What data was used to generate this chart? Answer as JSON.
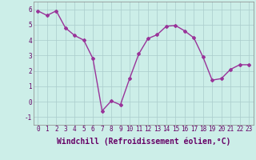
{
  "x": [
    0,
    1,
    2,
    3,
    4,
    5,
    6,
    7,
    8,
    9,
    10,
    11,
    12,
    13,
    14,
    15,
    16,
    17,
    18,
    19,
    20,
    21,
    22,
    23
  ],
  "y": [
    5.9,
    5.6,
    5.9,
    4.8,
    4.3,
    4.0,
    2.8,
    -0.6,
    0.05,
    -0.2,
    1.5,
    3.1,
    4.1,
    4.35,
    4.9,
    4.95,
    4.6,
    4.15,
    2.9,
    1.4,
    1.5,
    2.1,
    2.4,
    2.4
  ],
  "line_color": "#993399",
  "marker": "D",
  "marker_size": 2,
  "bg_color": "#cceee8",
  "grid_color": "#aacccc",
  "xlabel": "Windchill (Refroidissement éolien,°C)",
  "ylim": [
    -1.5,
    6.5
  ],
  "xlim": [
    -0.5,
    23.5
  ],
  "yticks": [
    -1,
    0,
    1,
    2,
    3,
    4,
    5,
    6
  ],
  "xticks": [
    0,
    1,
    2,
    3,
    4,
    5,
    6,
    7,
    8,
    9,
    10,
    11,
    12,
    13,
    14,
    15,
    16,
    17,
    18,
    19,
    20,
    21,
    22,
    23
  ],
  "tick_fontsize": 5.5,
  "xlabel_fontsize": 7,
  "line_width": 1.0
}
